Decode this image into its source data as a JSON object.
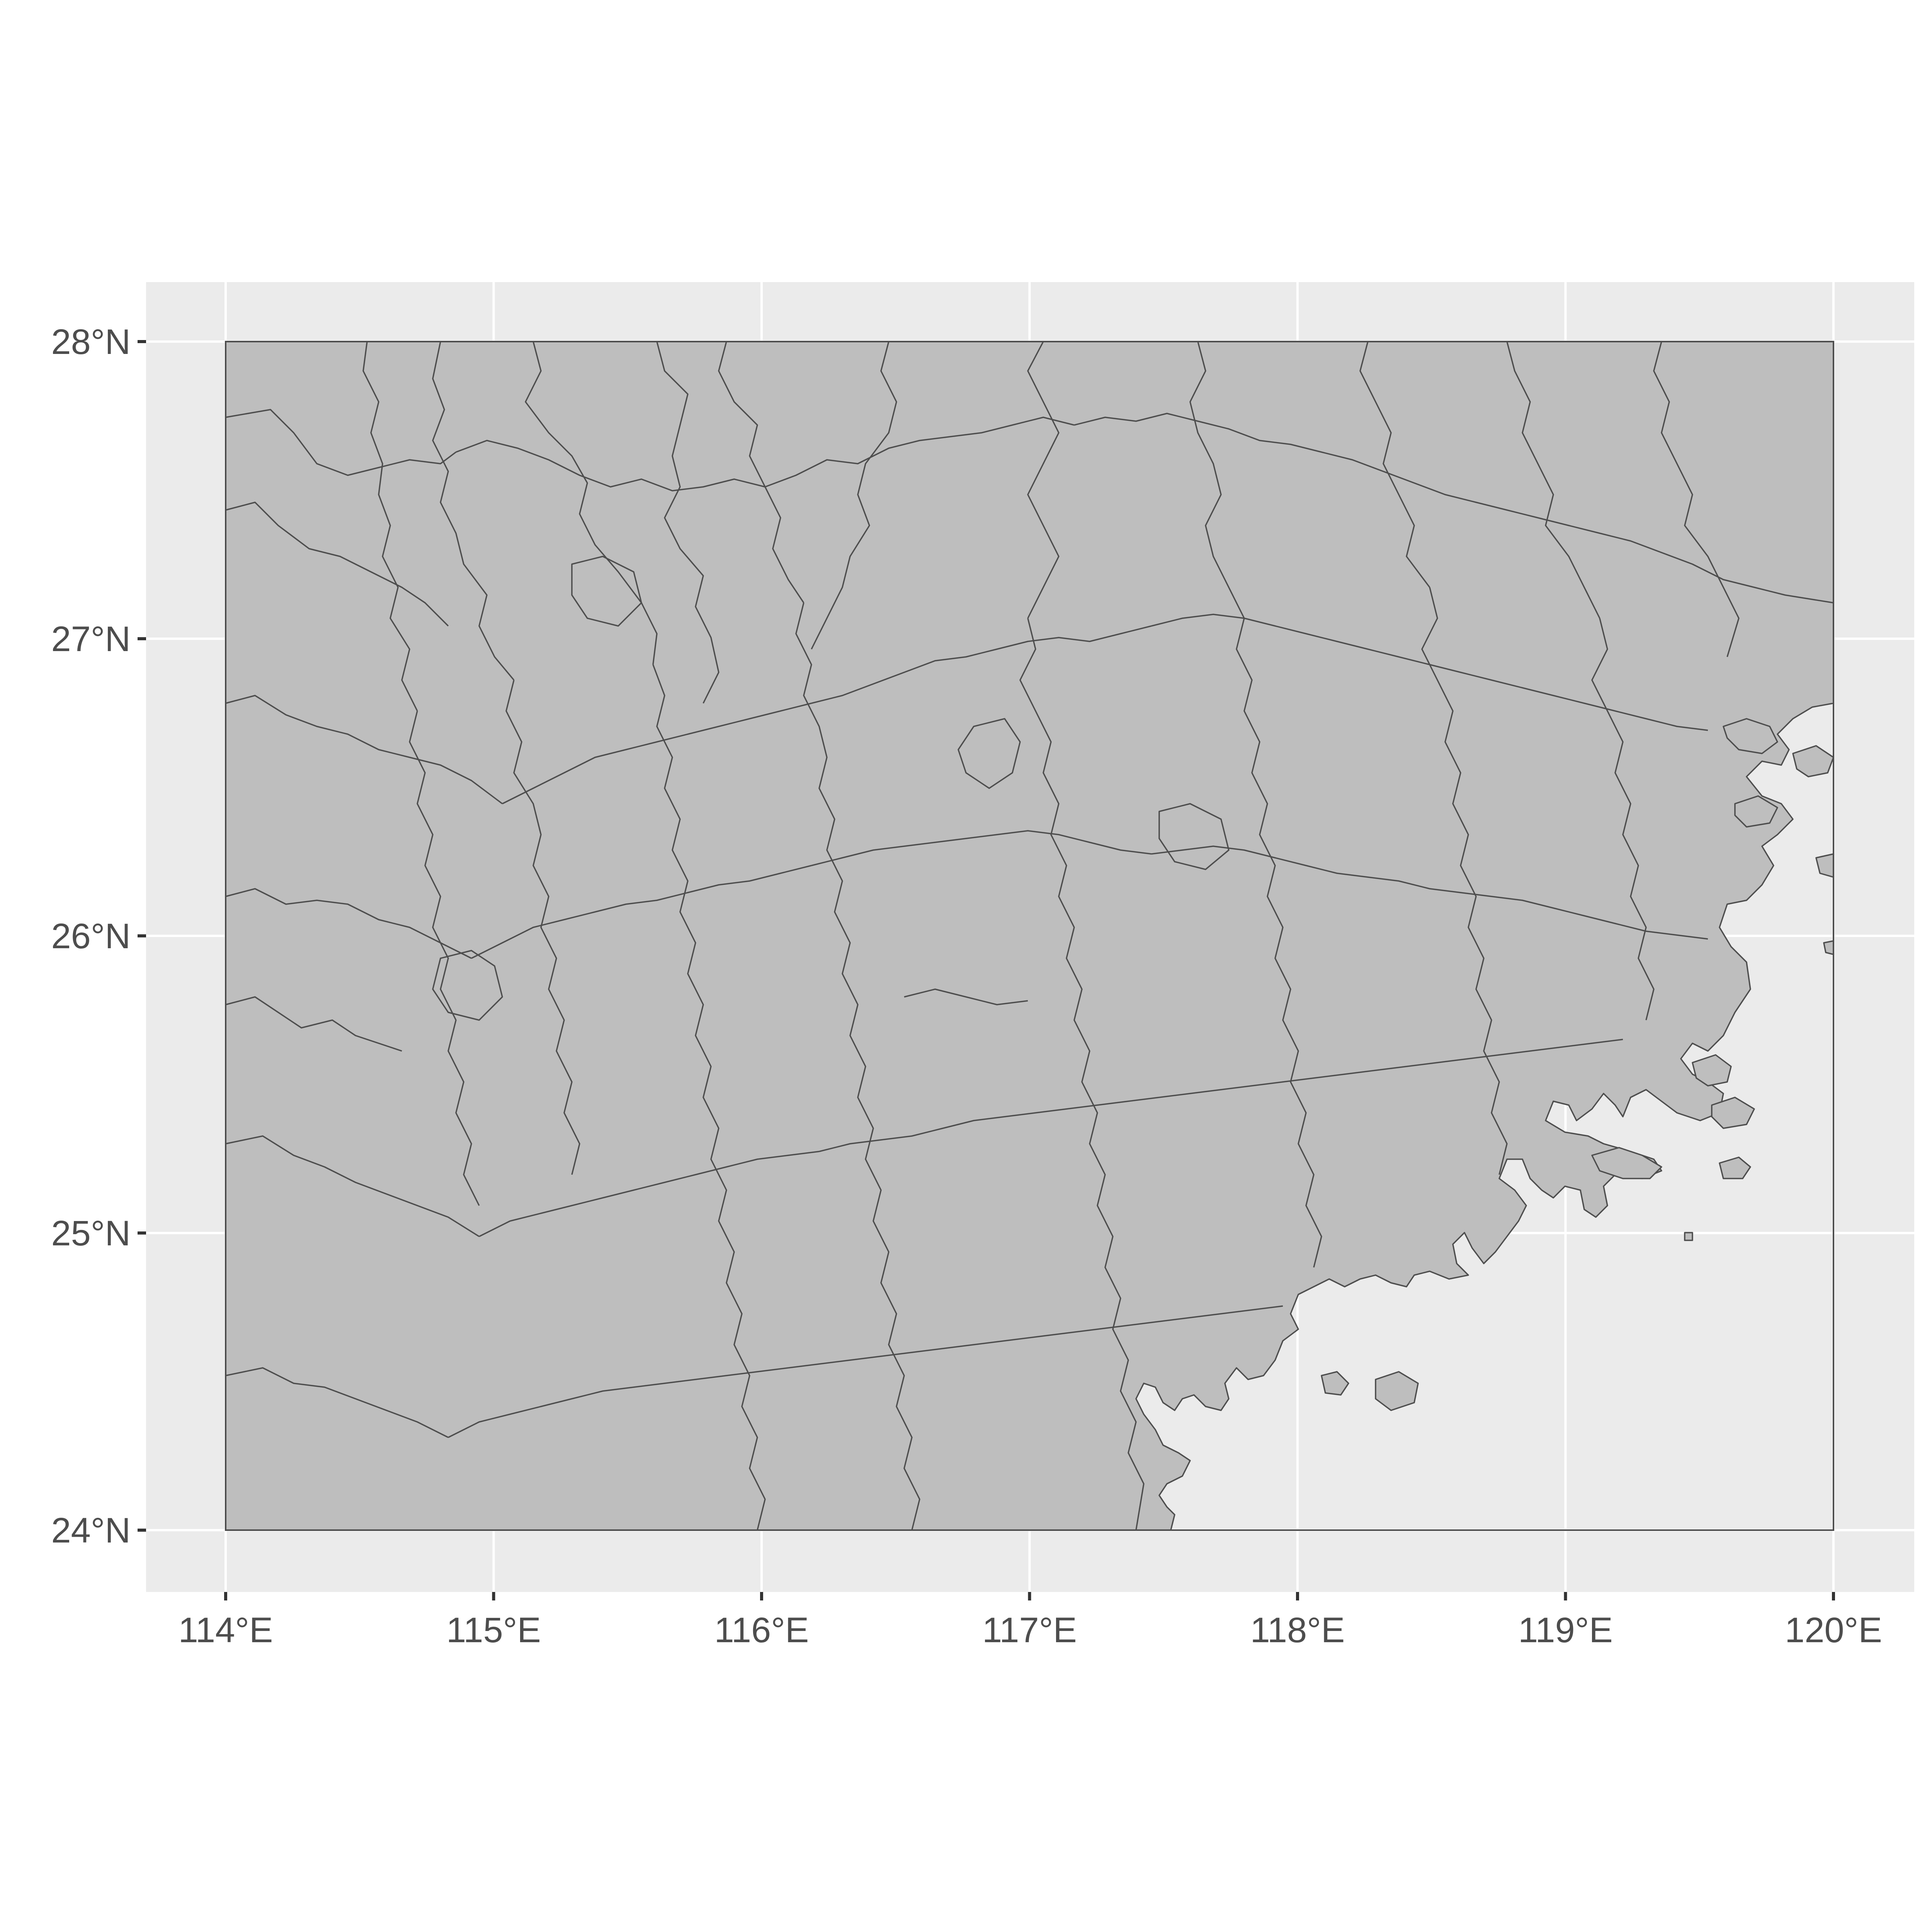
{
  "map": {
    "panel_background": "#ebebeb",
    "land_color": "#bebebe",
    "border_color": "#4d4d4d",
    "grid_color": "#ffffff",
    "extent": {
      "lon": [
        114,
        120
      ],
      "lat": [
        24,
        28
      ]
    }
  },
  "chart_data": {
    "type": "map",
    "title": "",
    "xlabel": "",
    "ylabel": "",
    "xlim": [
      113.7,
      120.3
    ],
    "ylim": [
      23.8,
      28.2
    ],
    "grid": true,
    "x_ticks": [
      {
        "value": 114,
        "label": "114°E"
      },
      {
        "value": 115,
        "label": "115°E"
      },
      {
        "value": 116,
        "label": "116°E"
      },
      {
        "value": 117,
        "label": "117°E"
      },
      {
        "value": 118,
        "label": "118°E"
      },
      {
        "value": 119,
        "label": "119°E"
      },
      {
        "value": 120,
        "label": "120°E"
      }
    ],
    "y_ticks": [
      {
        "value": 24,
        "label": "24°N"
      },
      {
        "value": 25,
        "label": "25°N"
      },
      {
        "value": 26,
        "label": "26°N"
      },
      {
        "value": 27,
        "label": "27°N"
      },
      {
        "value": 28,
        "label": "28°N"
      }
    ]
  }
}
